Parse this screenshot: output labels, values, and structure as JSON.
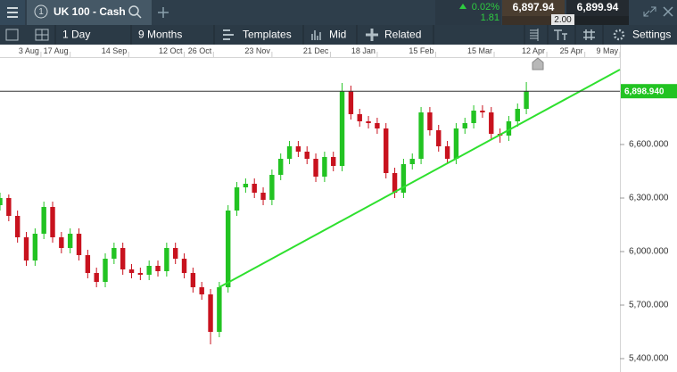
{
  "header": {
    "tab_number": "1",
    "instrument": "UK 100 - Cash",
    "change_percent": "0.02%",
    "change": "1.81",
    "sell": "6,897.94",
    "spread": "2.00",
    "buy": "6,899.94"
  },
  "toolbar": {
    "interval": "1 Day",
    "range": "9 Months",
    "templates": "Templates",
    "price_type": "Mid",
    "related": "Related",
    "settings": "Settings"
  },
  "chart_data": {
    "type": "candlestick",
    "up_color": "#22c322",
    "down_color": "#c8121e",
    "x": [
      0,
      3,
      6,
      9,
      12,
      15,
      18,
      21,
      24,
      27,
      30,
      33,
      36,
      39,
      42,
      45,
      48,
      51,
      54,
      57,
      60,
      63,
      66,
      69,
      72,
      75,
      78,
      81,
      84,
      87,
      90,
      93,
      96,
      99,
      102,
      105,
      108,
      111,
      114,
      117,
      120,
      123,
      126,
      129,
      132,
      135,
      138,
      141,
      144,
      147,
      150,
      153,
      156,
      159,
      162,
      165,
      168,
      171,
      174,
      177,
      180
    ],
    "open": [
      6260,
      6300,
      6200,
      6080,
      5950,
      6100,
      6250,
      6080,
      6020,
      6100,
      5980,
      5880,
      5830,
      5960,
      6020,
      5900,
      5880,
      5870,
      5920,
      5890,
      6020,
      5960,
      5880,
      5800,
      5760,
      5550,
      5800,
      6230,
      6360,
      6380,
      6330,
      6290,
      6430,
      6520,
      6590,
      6560,
      6520,
      6420,
      6530,
      6480,
      6900,
      6770,
      6730,
      6720,
      6690,
      6440,
      6330,
      6490,
      6520,
      6780,
      6680,
      6590,
      6520,
      6690,
      6720,
      6790,
      6780,
      6660,
      6650,
      6730,
      6800
    ],
    "high": [
      6330,
      6320,
      6230,
      6110,
      6130,
      6280,
      6280,
      6110,
      6130,
      6130,
      6010,
      5910,
      5990,
      6050,
      6050,
      5930,
      5910,
      5950,
      5950,
      6050,
      6050,
      5990,
      5910,
      5830,
      5790,
      5830,
      6260,
      6390,
      6410,
      6410,
      6360,
      6460,
      6550,
      6620,
      6620,
      6590,
      6550,
      6560,
      6560,
      6945,
      6930,
      6800,
      6760,
      6750,
      6720,
      6470,
      6520,
      6550,
      6810,
      6810,
      6710,
      6620,
      6720,
      6750,
      6820,
      6820,
      6810,
      6690,
      6760,
      6830,
      6950
    ],
    "low": [
      6230,
      6170,
      6050,
      5920,
      5920,
      6070,
      6050,
      5990,
      5990,
      5950,
      5850,
      5800,
      5800,
      5930,
      5870,
      5850,
      5840,
      5840,
      5860,
      5860,
      5930,
      5850,
      5770,
      5730,
      5480,
      5520,
      5770,
      6200,
      6330,
      6300,
      6260,
      6260,
      6400,
      6490,
      6530,
      6490,
      6390,
      6390,
      6450,
      6450,
      6740,
      6700,
      6690,
      6660,
      6410,
      6300,
      6300,
      6460,
      6490,
      6650,
      6560,
      6490,
      6490,
      6660,
      6690,
      6750,
      6630,
      6610,
      6620,
      6700,
      6770
    ],
    "close": [
      6300,
      6200,
      6080,
      5950,
      6100,
      6250,
      6080,
      6020,
      6100,
      5980,
      5880,
      5830,
      5960,
      6020,
      5900,
      5880,
      5870,
      5920,
      5890,
      6020,
      5960,
      5880,
      5800,
      5760,
      5550,
      5800,
      6230,
      6360,
      6380,
      6330,
      6290,
      6430,
      6520,
      6590,
      6560,
      6520,
      6420,
      6530,
      6480,
      6900,
      6770,
      6730,
      6720,
      6690,
      6440,
      6330,
      6490,
      6520,
      6780,
      6680,
      6590,
      6520,
      6690,
      6720,
      6790,
      6780,
      6660,
      6650,
      6730,
      6800,
      6899
    ],
    "xlim": [
      0,
      212
    ],
    "ylim": [
      5325,
      7090
    ],
    "xticks": [
      {
        "value": 14,
        "label": "3 Aug"
      },
      {
        "value": 24,
        "label": "17 Aug"
      },
      {
        "value": 44,
        "label": "14 Sep"
      },
      {
        "value": 63,
        "label": "12 Oct"
      },
      {
        "value": 73,
        "label": "26 Oct"
      },
      {
        "value": 93,
        "label": "23 Nov"
      },
      {
        "value": 113,
        "label": "21 Dec"
      },
      {
        "value": 129,
        "label": "18 Jan"
      },
      {
        "value": 149,
        "label": "15 Feb"
      },
      {
        "value": 169,
        "label": "15 Mar"
      },
      {
        "value": 187,
        "label": "12 Apr"
      },
      {
        "value": 200,
        "label": "25 Apr"
      },
      {
        "value": 212,
        "label": "9 May"
      }
    ],
    "yticks": [
      {
        "value": 5400,
        "label": "5,400.000"
      },
      {
        "value": 5700,
        "label": "5,700.000"
      },
      {
        "value": 6000,
        "label": "6,000.000"
      },
      {
        "value": 6300,
        "label": "6,300.000"
      },
      {
        "value": 6600,
        "label": "6,600.000"
      }
    ],
    "last_price": {
      "value": 6898.94,
      "label": "6,898.940"
    },
    "trendline": {
      "x": [
        75,
        212
      ],
      "y": [
        5800,
        7020
      ],
      "color": "#2ee02e"
    }
  }
}
